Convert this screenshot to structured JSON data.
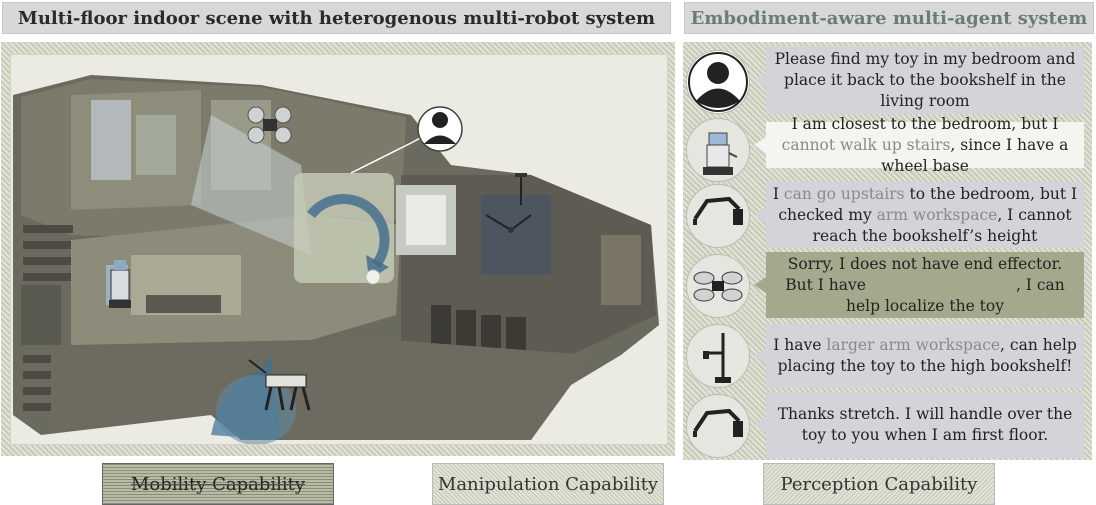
{
  "headers": {
    "left": "Multi-floor indoor scene with heterogenous multi-robot system",
    "right": "Embodiment-aware multi-agent system"
  },
  "chat": [
    {
      "speaker_icon": "user-icon",
      "text": "Please find my toy in my bedroom and place it back to the bookshelf in the living room",
      "style": "gray"
    },
    {
      "speaker_icon": "wheeled-robot-icon",
      "parts": [
        "I am closest to the bedroom, but I ",
        "cannot walk up stairs",
        ", since I have a wheel base"
      ],
      "style": "white"
    },
    {
      "speaker_icon": "robot-arm-icon",
      "parts": [
        "I ",
        "can go upstairs",
        " to the bedroom, but I checked my ",
        "arm workspace",
        ", I cannot reach the bookshelf’s height"
      ],
      "style": "gray"
    },
    {
      "speaker_icon": "drone-icon",
      "parts": [
        "Sorry, I does not have end effector. But I have",
        ", I can help localize the toy"
      ],
      "style": "olive"
    },
    {
      "speaker_icon": "tall-arm-robot-icon",
      "parts": [
        "I have ",
        "larger arm workspace",
        ", can help placing the toy to the high bookshelf!"
      ],
      "style": "gray"
    },
    {
      "speaker_icon": "robot-arm-icon",
      "text": "Thanks stretch. I will handle over the toy to you when I am first floor.",
      "style": "gray"
    }
  ],
  "legend": {
    "mobility": "Mobility Capability",
    "manipulation": "Manipulation Capability",
    "perception": "Perception Capability"
  },
  "colors": {
    "header_bg": "#d8d8d8",
    "right_header_text": "#6b7d72",
    "bubble_gray": "#d2d4da",
    "bubble_white": "#f4f4f0",
    "bubble_olive": "#a3a98c"
  }
}
